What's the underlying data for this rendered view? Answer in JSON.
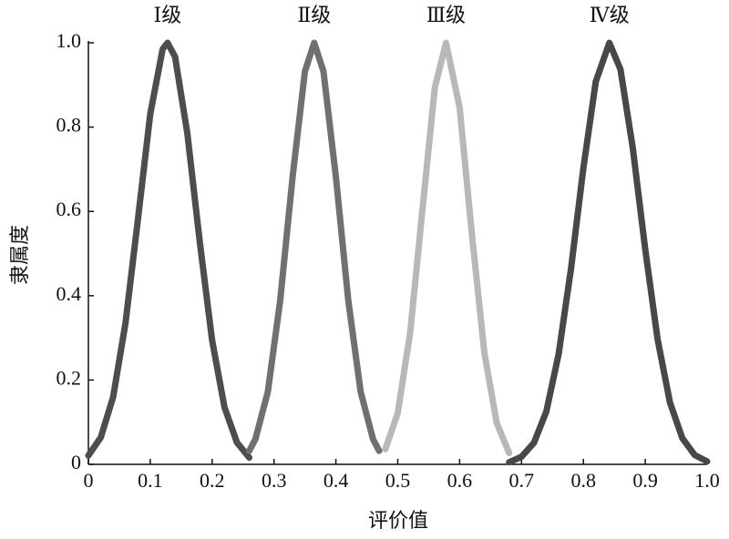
{
  "chart_data": {
    "type": "line",
    "x_label": "评价值",
    "y_label": "隶属度",
    "xlim": [
      0,
      1
    ],
    "ylim": [
      0,
      1
    ],
    "xticks": [
      0,
      0.1,
      0.2,
      0.3,
      0.4,
      0.5,
      0.6,
      0.7,
      0.8,
      0.9,
      {
        "value": 1,
        "label": "1.0"
      }
    ],
    "yticks": [
      0,
      0.2,
      0.4,
      0.6,
      0.8,
      {
        "value": 1,
        "label": "1.0"
      }
    ],
    "series": [
      {
        "name": "Ⅰ级",
        "color": "#4d4d4d",
        "x": [
          0,
          0.02,
          0.04,
          0.06,
          0.08,
          0.1,
          0.12,
          0.128,
          0.14,
          0.16,
          0.18,
          0.2,
          0.22,
          0.24,
          0.26
        ],
        "values": [
          0.021,
          0.064,
          0.16,
          0.335,
          0.58,
          0.831,
          0.985,
          1.0,
          0.967,
          0.785,
          0.528,
          0.294,
          0.135,
          0.052,
          0.016
        ]
      },
      {
        "name": "Ⅱ级",
        "color": "#707070",
        "x": [
          0.26,
          0.27,
          0.29,
          0.31,
          0.33,
          0.35,
          0.365,
          0.38,
          0.4,
          0.42,
          0.44,
          0.46,
          0.47
        ],
        "values": [
          0.032,
          0.06,
          0.172,
          0.389,
          0.682,
          0.932,
          1.0,
          0.932,
          0.682,
          0.389,
          0.172,
          0.06,
          0.032
        ]
      },
      {
        "name": "Ⅲ级",
        "color": "#b8b8b8",
        "x": [
          0.48,
          0.5,
          0.52,
          0.54,
          0.56,
          0.578,
          0.6,
          0.62,
          0.64,
          0.66,
          0.68
        ],
        "values": [
          0.036,
          0.122,
          0.312,
          0.607,
          0.894,
          1.0,
          0.846,
          0.543,
          0.264,
          0.098,
          0.027
        ]
      },
      {
        "name": "Ⅳ级",
        "color": "#484848",
        "x": [
          0.68,
          0.7,
          0.72,
          0.74,
          0.76,
          0.78,
          0.8,
          0.82,
          0.842,
          0.86,
          0.88,
          0.9,
          0.92,
          0.94,
          0.96,
          0.98,
          1.0
        ],
        "values": [
          0.005,
          0.018,
          0.051,
          0.125,
          0.261,
          0.464,
          0.703,
          0.908,
          1.0,
          0.937,
          0.749,
          0.51,
          0.296,
          0.146,
          0.062,
          0.022,
          0.007
        ]
      }
    ]
  }
}
